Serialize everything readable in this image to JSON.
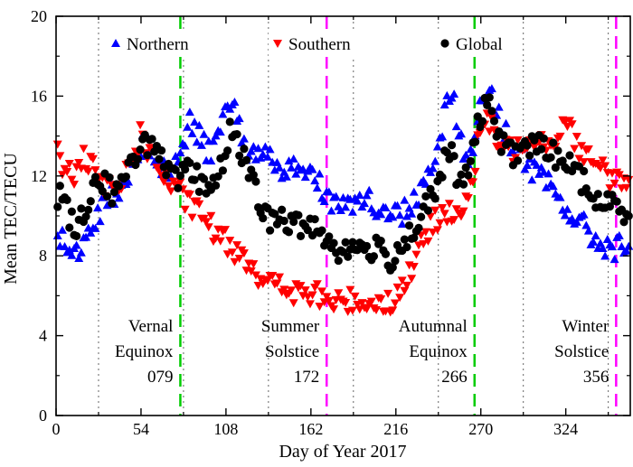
{
  "chart_data": {
    "type": "scatter",
    "title": "",
    "xlabel": "Day of Year 2017",
    "ylabel": "Mean TEC/TECU",
    "xlim": [
      0,
      365
    ],
    "ylim": [
      0,
      20
    ],
    "x_ticks": [
      0,
      54,
      108,
      162,
      216,
      270,
      324
    ],
    "x_tick_labels": [
      "0",
      "54",
      "108",
      "162",
      "216",
      "270",
      "324"
    ],
    "y_ticks": [
      0,
      4,
      8,
      12,
      16,
      20
    ],
    "y_tick_labels": [
      "0",
      "4",
      "8",
      "12",
      "16",
      "20"
    ],
    "grid_lines_x": [
      27,
      81,
      135,
      189,
      243,
      297,
      351
    ],
    "series": [
      {
        "name": "Northern",
        "marker": "triangle-up",
        "color": "#0000ff",
        "anchors": [
          [
            0,
            9.2
          ],
          [
            4,
            8.8
          ],
          [
            8,
            8.2
          ],
          [
            11,
            7.8
          ],
          [
            14,
            8.0
          ],
          [
            18,
            8.6
          ],
          [
            24,
            9.8
          ],
          [
            30,
            10.6
          ],
          [
            38,
            11.2
          ],
          [
            45,
            12.2
          ],
          [
            50,
            12.8
          ],
          [
            55,
            13.6
          ],
          [
            60,
            13.2
          ],
          [
            65,
            12.6
          ],
          [
            70,
            12.2
          ],
          [
            75,
            12.6
          ],
          [
            80,
            13.4
          ],
          [
            85,
            14.6
          ],
          [
            90,
            14.0
          ],
          [
            95,
            13.4
          ],
          [
            100,
            13.4
          ],
          [
            105,
            14.8
          ],
          [
            110,
            15.6
          ],
          [
            114,
            15.4
          ],
          [
            118,
            14.2
          ],
          [
            122,
            13.0
          ],
          [
            128,
            12.8
          ],
          [
            134,
            13.4
          ],
          [
            140,
            12.6
          ],
          [
            148,
            12.2
          ],
          [
            155,
            12.4
          ],
          [
            162,
            12.2
          ],
          [
            168,
            11.6
          ],
          [
            174,
            11.0
          ],
          [
            180,
            10.4
          ],
          [
            188,
            10.6
          ],
          [
            196,
            11.0
          ],
          [
            204,
            10.4
          ],
          [
            212,
            10.0
          ],
          [
            220,
            10.2
          ],
          [
            228,
            10.8
          ],
          [
            236,
            12.0
          ],
          [
            242,
            13.4
          ],
          [
            248,
            15.4
          ],
          [
            252,
            16.6
          ],
          [
            256,
            14.2
          ],
          [
            260,
            12.8
          ],
          [
            264,
            13.0
          ],
          [
            270,
            15.8
          ],
          [
            274,
            16.4
          ],
          [
            280,
            15.2
          ],
          [
            288,
            13.8
          ],
          [
            296,
            13.0
          ],
          [
            304,
            12.2
          ],
          [
            312,
            11.6
          ],
          [
            320,
            10.8
          ],
          [
            328,
            10.0
          ],
          [
            336,
            9.4
          ],
          [
            342,
            8.8
          ],
          [
            348,
            8.6
          ],
          [
            356,
            8.4
          ],
          [
            365,
            8.4
          ]
        ]
      },
      {
        "name": "Southern",
        "marker": "triangle-down",
        "color": "#ff0000",
        "anchors": [
          [
            0,
            13.2
          ],
          [
            6,
            12.4
          ],
          [
            12,
            12.0
          ],
          [
            18,
            12.8
          ],
          [
            24,
            12.2
          ],
          [
            30,
            11.4
          ],
          [
            36,
            11.2
          ],
          [
            42,
            11.6
          ],
          [
            48,
            13.0
          ],
          [
            54,
            14.0
          ],
          [
            60,
            13.2
          ],
          [
            64,
            12.6
          ],
          [
            70,
            11.8
          ],
          [
            76,
            11.2
          ],
          [
            80,
            11.0
          ],
          [
            84,
            10.6
          ],
          [
            90,
            10.2
          ],
          [
            96,
            9.8
          ],
          [
            100,
            9.2
          ],
          [
            106,
            8.8
          ],
          [
            112,
            8.4
          ],
          [
            118,
            8.2
          ],
          [
            124,
            7.6
          ],
          [
            130,
            7.0
          ],
          [
            136,
            6.6
          ],
          [
            142,
            6.4
          ],
          [
            150,
            6.2
          ],
          [
            158,
            6.0
          ],
          [
            166,
            6.0
          ],
          [
            172,
            5.8
          ],
          [
            180,
            5.6
          ],
          [
            190,
            5.8
          ],
          [
            200,
            5.6
          ],
          [
            208,
            5.8
          ],
          [
            214,
            5.6
          ],
          [
            220,
            6.4
          ],
          [
            226,
            7.4
          ],
          [
            232,
            8.4
          ],
          [
            238,
            9.4
          ],
          [
            244,
            10.0
          ],
          [
            250,
            10.4
          ],
          [
            256,
            10.2
          ],
          [
            260,
            10.2
          ],
          [
            266,
            12.4
          ],
          [
            270,
            14.8
          ],
          [
            276,
            14.4
          ],
          [
            282,
            13.6
          ],
          [
            288,
            13.2
          ],
          [
            296,
            13.6
          ],
          [
            302,
            14.2
          ],
          [
            308,
            13.8
          ],
          [
            316,
            13.8
          ],
          [
            322,
            14.4
          ],
          [
            326,
            15.0
          ],
          [
            330,
            13.8
          ],
          [
            336,
            13.0
          ],
          [
            342,
            12.6
          ],
          [
            348,
            12.2
          ],
          [
            356,
            11.8
          ],
          [
            365,
            11.6
          ]
        ]
      },
      {
        "name": "Global",
        "marker": "circle",
        "color": "#000000",
        "anchors": [
          [
            0,
            11.2
          ],
          [
            6,
            10.6
          ],
          [
            10,
            9.6
          ],
          [
            14,
            9.6
          ],
          [
            18,
            10.2
          ],
          [
            24,
            11.6
          ],
          [
            30,
            11.8
          ],
          [
            36,
            11.2
          ],
          [
            42,
            11.4
          ],
          [
            48,
            12.6
          ],
          [
            54,
            13.8
          ],
          [
            60,
            13.6
          ],
          [
            66,
            12.8
          ],
          [
            72,
            12.0
          ],
          [
            78,
            11.6
          ],
          [
            84,
            12.4
          ],
          [
            90,
            11.8
          ],
          [
            96,
            11.6
          ],
          [
            100,
            11.6
          ],
          [
            106,
            12.6
          ],
          [
            112,
            14.6
          ],
          [
            116,
            13.8
          ],
          [
            120,
            12.6
          ],
          [
            126,
            11.4
          ],
          [
            132,
            10.0
          ],
          [
            138,
            9.8
          ],
          [
            144,
            9.8
          ],
          [
            150,
            9.6
          ],
          [
            156,
            9.4
          ],
          [
            162,
            9.6
          ],
          [
            168,
            9.4
          ],
          [
            174,
            8.6
          ],
          [
            182,
            8.2
          ],
          [
            190,
            8.4
          ],
          [
            198,
            8.4
          ],
          [
            206,
            8.2
          ],
          [
            212,
            7.8
          ],
          [
            218,
            8.4
          ],
          [
            226,
            9.2
          ],
          [
            234,
            10.2
          ],
          [
            240,
            11.0
          ],
          [
            246,
            12.4
          ],
          [
            250,
            13.4
          ],
          [
            254,
            12.2
          ],
          [
            258,
            11.4
          ],
          [
            264,
            12.8
          ],
          [
            270,
            15.2
          ],
          [
            276,
            15.4
          ],
          [
            282,
            14.0
          ],
          [
            288,
            13.0
          ],
          [
            296,
            13.4
          ],
          [
            304,
            13.6
          ],
          [
            312,
            13.2
          ],
          [
            320,
            13.0
          ],
          [
            328,
            12.4
          ],
          [
            336,
            11.6
          ],
          [
            342,
            10.8
          ],
          [
            350,
            10.6
          ],
          [
            358,
            10.4
          ],
          [
            365,
            10.2
          ]
        ]
      }
    ],
    "reference_lines": [
      {
        "day": 79,
        "style": "dashed",
        "color": "#00cc00",
        "label_lines": [
          "Vernal",
          "Equinox",
          "079"
        ]
      },
      {
        "day": 172,
        "style": "dashed",
        "color": "#ff00ff",
        "label_lines": [
          "Summer",
          "Solstice",
          "172"
        ]
      },
      {
        "day": 266,
        "style": "dashed",
        "color": "#00cc00",
        "label_lines": [
          "Autumnal",
          "Equinox",
          "266"
        ]
      },
      {
        "day": 356,
        "style": "dashed",
        "color": "#ff00ff",
        "label_lines": [
          "Winter",
          "Solstice",
          "356"
        ]
      }
    ],
    "legend": {
      "placement": "top",
      "entries": [
        "Northern",
        "Southern",
        "Global"
      ]
    }
  }
}
